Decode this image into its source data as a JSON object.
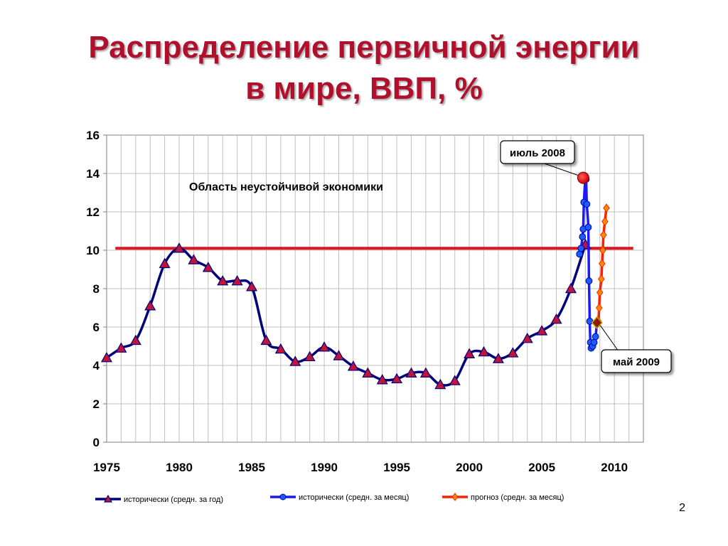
{
  "slide": {
    "title_line1": "Распределение первичной энергии",
    "title_line2": "в мире, ВВП, %",
    "page_number": "2"
  },
  "colors": {
    "title": "#b0102c",
    "yearly_line": "#00007a",
    "yearly_marker": "#c0143c",
    "monthly_line": "#1a1aff",
    "monthly_marker": "#1a5cff",
    "forecast_line": "#ff2000",
    "forecast_marker": "#ff8c00",
    "threshold_line": "#e0141c"
  },
  "chart_data": {
    "type": "line",
    "xlim": [
      1975,
      2012
    ],
    "ylim": [
      0,
      16
    ],
    "x_ticks": [
      1975,
      1980,
      1985,
      1990,
      1995,
      2000,
      2005,
      2010
    ],
    "y_ticks": [
      0,
      2,
      4,
      6,
      8,
      10,
      12,
      14,
      16
    ],
    "grid": true,
    "legend_position": "bottom",
    "threshold": {
      "y": 10.1,
      "x_start": 1975.6,
      "x_end": 2011.3
    },
    "annotations": {
      "region_label": "Область неустойчивой экономики",
      "peak_label": "июль 2008",
      "trough_label": "май 2009"
    },
    "series": [
      {
        "name": "исторически (средн. за год)",
        "marker": "triangle",
        "points": [
          [
            1975,
            4.4
          ],
          [
            1976,
            4.9
          ],
          [
            1977,
            5.3
          ],
          [
            1978,
            7.1
          ],
          [
            1979,
            9.3
          ],
          [
            1980,
            10.1
          ],
          [
            1981,
            9.5
          ],
          [
            1982,
            9.1
          ],
          [
            1983,
            8.4
          ],
          [
            1984,
            8.4
          ],
          [
            1985,
            8.1
          ],
          [
            1986,
            5.3
          ],
          [
            1987,
            4.85
          ],
          [
            1988,
            4.2
          ],
          [
            1989,
            4.45
          ],
          [
            1990,
            4.95
          ],
          [
            1991,
            4.5
          ],
          [
            1992,
            3.95
          ],
          [
            1993,
            3.6
          ],
          [
            1994,
            3.25
          ],
          [
            1995,
            3.3
          ],
          [
            1996,
            3.6
          ],
          [
            1997,
            3.6
          ],
          [
            1998,
            3.0
          ],
          [
            1999,
            3.2
          ],
          [
            2000,
            4.6
          ],
          [
            2001,
            4.7
          ],
          [
            2002,
            4.35
          ],
          [
            2003,
            4.65
          ],
          [
            2004,
            5.4
          ],
          [
            2005,
            5.8
          ],
          [
            2006,
            6.4
          ],
          [
            2007,
            8.0
          ],
          [
            2008,
            10.3
          ]
        ]
      },
      {
        "name": "исторически (средн. за месяц)",
        "marker": "circle",
        "points": [
          [
            2007.6,
            9.8
          ],
          [
            2007.7,
            10.1
          ],
          [
            2007.8,
            10.7
          ],
          [
            2007.85,
            11.1
          ],
          [
            2007.9,
            12.5
          ],
          [
            2008.0,
            13.7
          ],
          [
            2008.05,
            13.7
          ],
          [
            2008.1,
            12.4
          ],
          [
            2008.2,
            11.2
          ],
          [
            2008.25,
            8.4
          ],
          [
            2008.3,
            6.3
          ],
          [
            2008.35,
            5.2
          ],
          [
            2008.4,
            4.9
          ],
          [
            2008.5,
            5.0
          ],
          [
            2008.6,
            5.2
          ],
          [
            2008.7,
            5.5
          ],
          [
            2008.8,
            6.2
          ]
        ]
      },
      {
        "name": "прогноз (средн. за месяц)",
        "marker": "diamond",
        "points": [
          [
            2008.9,
            6.3
          ],
          [
            2008.95,
            7.0
          ],
          [
            2009.0,
            7.8
          ],
          [
            2009.1,
            8.5
          ],
          [
            2009.15,
            9.3
          ],
          [
            2009.2,
            10.0
          ],
          [
            2009.25,
            10.8
          ],
          [
            2009.35,
            11.5
          ],
          [
            2009.45,
            12.2
          ]
        ]
      }
    ]
  }
}
